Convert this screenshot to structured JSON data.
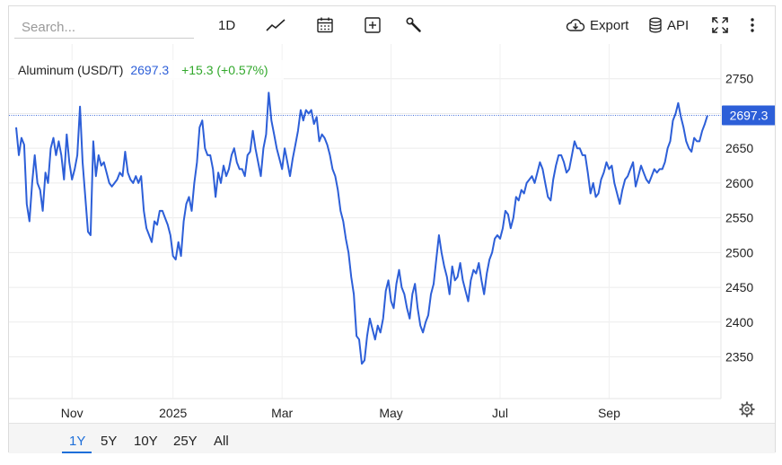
{
  "toolbar": {
    "search_placeholder": "Search...",
    "interval_label": "1D",
    "export_label": "Export",
    "api_label": "API",
    "icons": [
      "line-chart-icon",
      "calendar-icon",
      "plus-square-icon",
      "wrench-icon",
      "cloud-download-icon",
      "database-icon",
      "fullscreen-icon",
      "more-vertical-icon"
    ]
  },
  "legend": {
    "name": "Aluminum (USD/T)",
    "last": "2697.3",
    "change": "+15.3 (+0.57%)"
  },
  "price_tag": "2697.3",
  "range_buttons": [
    {
      "label": "1Y",
      "active": true
    },
    {
      "label": "5Y",
      "active": false
    },
    {
      "label": "10Y",
      "active": false
    },
    {
      "label": "25Y",
      "active": false
    },
    {
      "label": "All",
      "active": false
    }
  ],
  "colors": {
    "line": "#2d5fd8",
    "up": "#31a82b",
    "tag_bg": "#2d5fd8",
    "active": "#1e6fd9"
  },
  "chart_data": {
    "type": "line",
    "series_name": "Aluminum (USD/T)",
    "x_tick_labels": [
      "Nov",
      "2025",
      "Mar",
      "May",
      "Jul",
      "Sep"
    ],
    "y_ticks": [
      2350,
      2400,
      2450,
      2500,
      2550,
      2600,
      2650,
      2700,
      2750
    ],
    "ylim": [
      2290,
      2800
    ],
    "last_value": 2697.3,
    "values": [
      2680,
      2640,
      2665,
      2655,
      2570,
      2545,
      2600,
      2640,
      2600,
      2590,
      2560,
      2615,
      2600,
      2650,
      2665,
      2640,
      2660,
      2640,
      2605,
      2670,
      2630,
      2605,
      2620,
      2640,
      2710,
      2630,
      2580,
      2530,
      2525,
      2660,
      2610,
      2640,
      2625,
      2630,
      2615,
      2600,
      2595,
      2600,
      2605,
      2615,
      2610,
      2645,
      2615,
      2605,
      2600,
      2610,
      2600,
      2610,
      2560,
      2535,
      2525,
      2515,
      2545,
      2540,
      2560,
      2560,
      2550,
      2540,
      2525,
      2495,
      2490,
      2515,
      2495,
      2545,
      2570,
      2580,
      2560,
      2600,
      2630,
      2680,
      2690,
      2650,
      2640,
      2640,
      2620,
      2580,
      2615,
      2600,
      2625,
      2610,
      2620,
      2640,
      2650,
      2630,
      2620,
      2620,
      2610,
      2640,
      2645,
      2675,
      2650,
      2630,
      2610,
      2650,
      2670,
      2730,
      2690,
      2670,
      2650,
      2635,
      2620,
      2650,
      2630,
      2610,
      2635,
      2655,
      2675,
      2705,
      2690,
      2705,
      2700,
      2705,
      2685,
      2695,
      2660,
      2670,
      2665,
      2655,
      2640,
      2620,
      2610,
      2590,
      2560,
      2545,
      2520,
      2500,
      2465,
      2440,
      2380,
      2375,
      2340,
      2345,
      2380,
      2405,
      2390,
      2375,
      2395,
      2385,
      2405,
      2445,
      2460,
      2430,
      2420,
      2455,
      2475,
      2450,
      2440,
      2420,
      2405,
      2440,
      2455,
      2420,
      2395,
      2385,
      2400,
      2410,
      2440,
      2455,
      2490,
      2525,
      2500,
      2480,
      2465,
      2440,
      2480,
      2460,
      2465,
      2485,
      2460,
      2445,
      2430,
      2460,
      2475,
      2470,
      2485,
      2460,
      2440,
      2470,
      2490,
      2500,
      2520,
      2525,
      2520,
      2535,
      2560,
      2555,
      2535,
      2550,
      2580,
      2575,
      2590,
      2585,
      2600,
      2605,
      2610,
      2600,
      2615,
      2630,
      2620,
      2600,
      2580,
      2575,
      2605,
      2625,
      2640,
      2640,
      2630,
      2615,
      2620,
      2640,
      2660,
      2650,
      2650,
      2640,
      2640,
      2615,
      2585,
      2600,
      2580,
      2585,
      2605,
      2615,
      2630,
      2620,
      2625,
      2600,
      2585,
      2570,
      2590,
      2605,
      2610,
      2620,
      2630,
      2595,
      2610,
      2625,
      2615,
      2605,
      2600,
      2610,
      2620,
      2615,
      2620,
      2620,
      2630,
      2650,
      2660,
      2690,
      2700,
      2715,
      2695,
      2680,
      2660,
      2650,
      2645,
      2665,
      2660,
      2660,
      2675,
      2685,
      2697.3
    ]
  }
}
